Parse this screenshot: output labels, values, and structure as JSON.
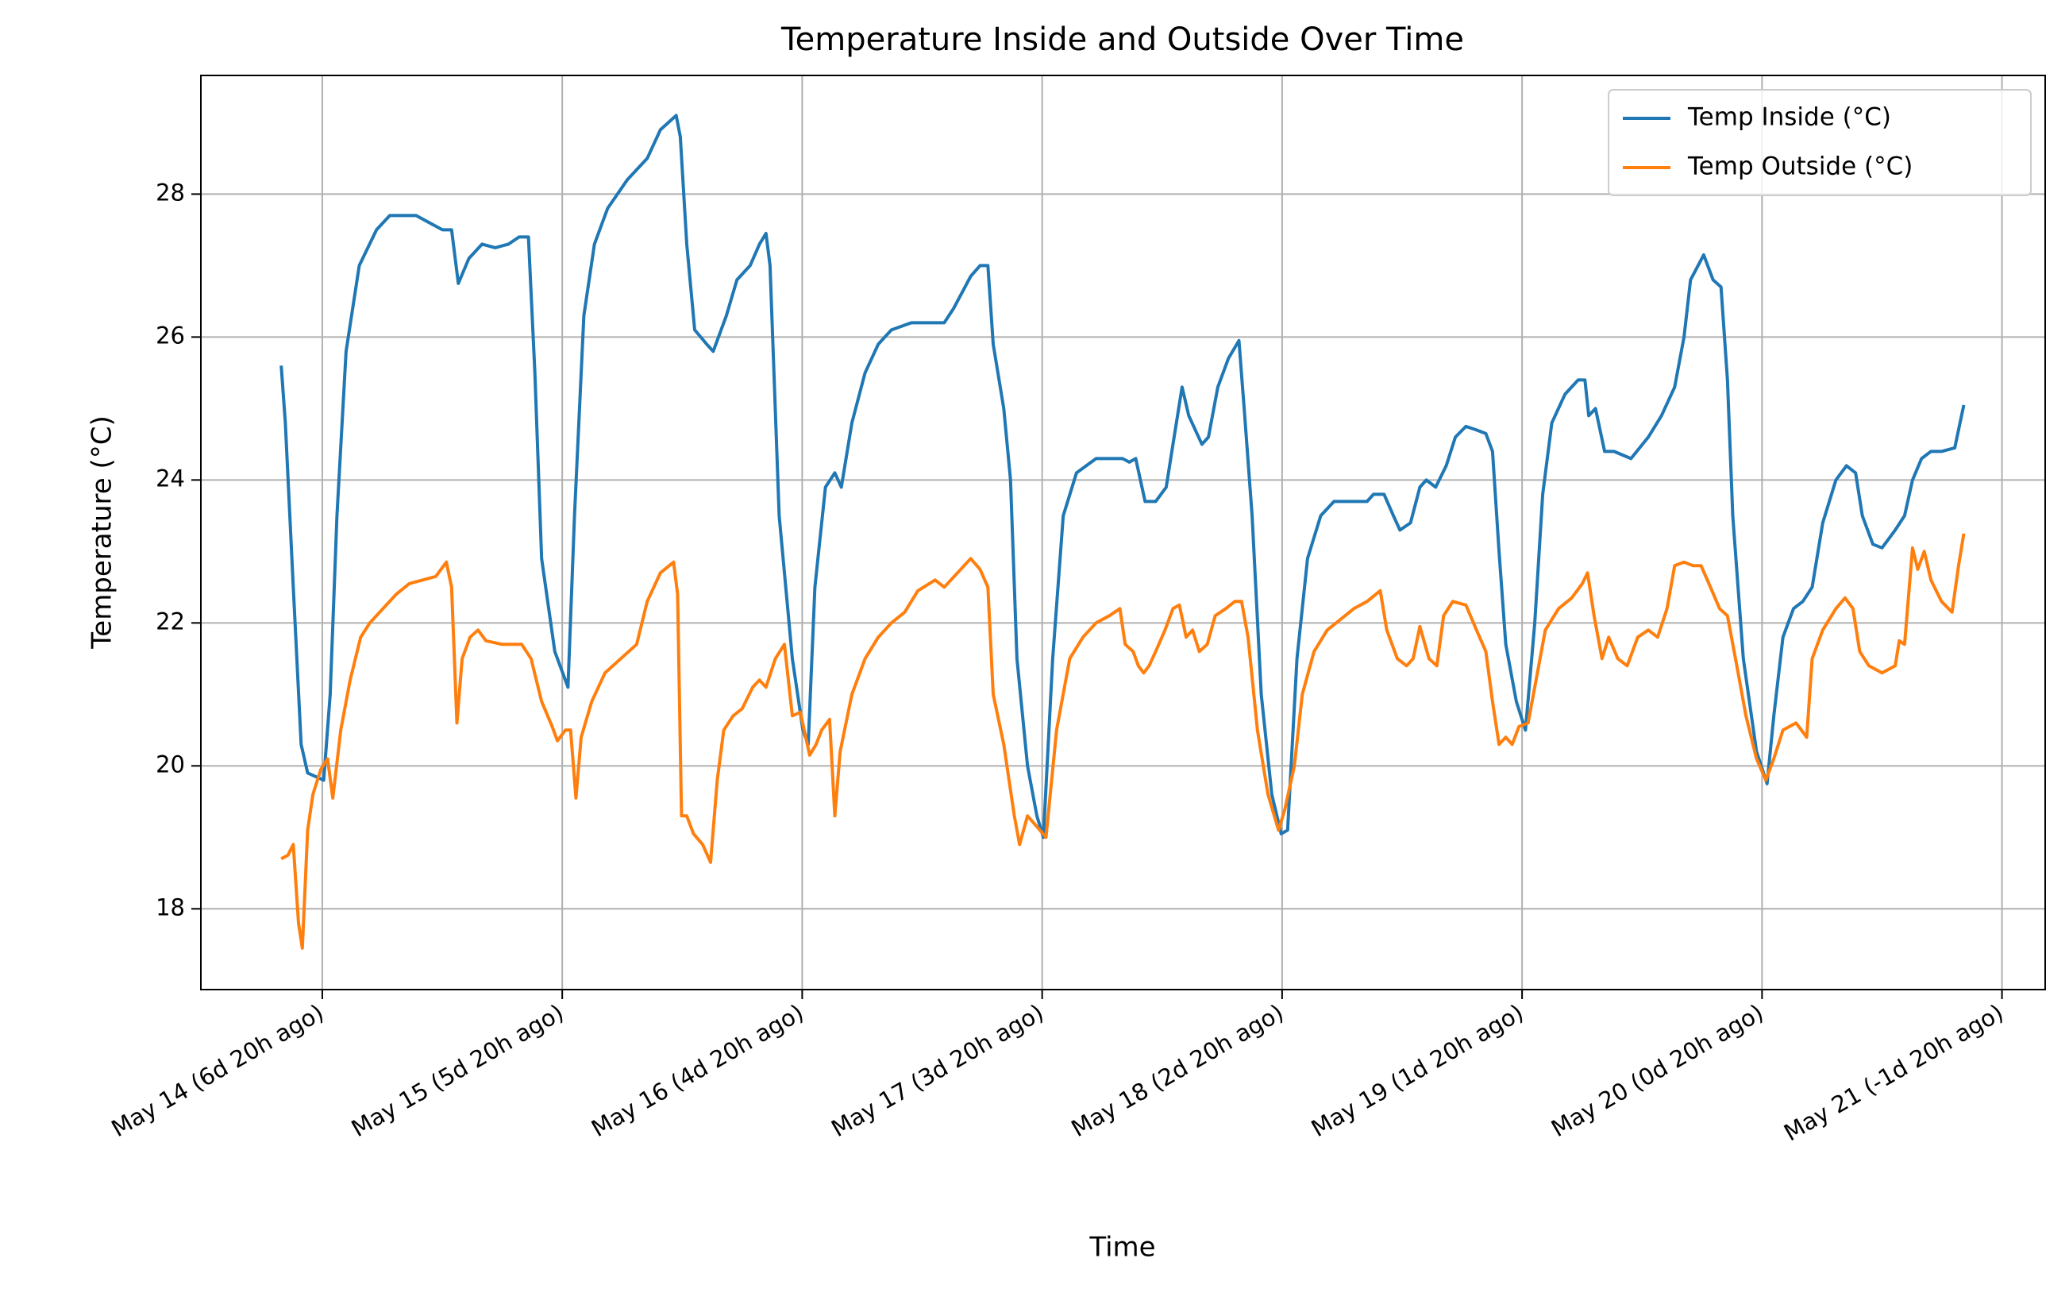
{
  "chart_data": {
    "type": "line",
    "title": "Temperature Inside and Outside Over Time",
    "x_label": "Time",
    "y_label": "Temperature (°C)",
    "xlim": [
      -0.506,
      7.18
    ],
    "ylim": [
      16.87,
      29.66
    ],
    "xticks": [
      {
        "value": 0,
        "label": "May 14 (6d 20h ago)"
      },
      {
        "value": 1,
        "label": "May 15 (5d 20h ago)"
      },
      {
        "value": 2,
        "label": "May 16 (4d 20h ago)"
      },
      {
        "value": 3,
        "label": "May 17 (3d 20h ago)"
      },
      {
        "value": 4,
        "label": "May 18 (2d 20h ago)"
      },
      {
        "value": 5,
        "label": "May 19 (1d 20h ago)"
      },
      {
        "value": 6,
        "label": "May 20 (0d 20h ago)"
      },
      {
        "value": 7,
        "label": "May 21 (-1d 20h ago)"
      }
    ],
    "yticks": [
      18,
      20,
      22,
      24,
      26,
      28
    ],
    "grid": true,
    "legend": "upper right",
    "series": [
      {
        "name": "Temp Inside (°C)",
        "color": "#1f77b4",
        "x": [
          -0.171,
          -0.154,
          -0.121,
          -0.088,
          -0.061,
          0.006,
          0.033,
          0.061,
          0.099,
          0.154,
          0.226,
          0.281,
          0.391,
          0.446,
          0.501,
          0.539,
          0.567,
          0.611,
          0.666,
          0.721,
          0.776,
          0.82,
          0.859,
          0.886,
          0.914,
          0.969,
          1.024,
          1.051,
          1.09,
          1.134,
          1.189,
          1.271,
          1.354,
          1.409,
          1.475,
          1.492,
          1.519,
          1.552,
          1.602,
          1.629,
          1.684,
          1.728,
          1.783,
          1.822,
          1.849,
          1.866,
          1.904,
          1.959,
          2.003,
          2.025,
          2.053,
          2.097,
          2.136,
          2.163,
          2.207,
          2.262,
          2.317,
          2.372,
          2.455,
          2.592,
          2.631,
          2.702,
          2.741,
          2.774,
          2.796,
          2.84,
          2.868,
          2.895,
          2.939,
          2.978,
          3.005,
          3.044,
          3.088,
          3.143,
          3.225,
          3.335,
          3.363,
          3.39,
          3.429,
          3.473,
          3.517,
          3.545,
          3.583,
          3.611,
          3.666,
          3.693,
          3.732,
          3.776,
          3.82,
          3.842,
          3.875,
          3.913,
          3.957,
          3.996,
          4.023,
          4.062,
          4.106,
          4.161,
          4.216,
          4.271,
          4.354,
          4.381,
          4.425,
          4.464,
          4.491,
          4.535,
          4.574,
          4.601,
          4.64,
          4.684,
          4.722,
          4.766,
          4.81,
          4.849,
          4.877,
          4.904,
          4.932,
          4.976,
          5.014,
          5.053,
          5.086,
          5.124,
          5.179,
          5.234,
          5.262,
          5.278,
          5.306,
          5.344,
          5.383,
          5.454,
          5.526,
          5.581,
          5.636,
          5.675,
          5.702,
          5.757,
          5.796,
          5.829,
          5.856,
          5.878,
          5.922,
          5.977,
          6.021,
          6.049,
          6.087,
          6.131,
          6.17,
          6.209,
          6.253,
          6.308,
          6.352,
          6.39,
          6.418,
          6.462,
          6.5,
          6.555,
          6.594,
          6.627,
          6.665,
          6.704,
          6.748,
          6.803,
          6.841
        ],
        "values": [
          25.6,
          24.8,
          22.5,
          20.3,
          19.9,
          19.8,
          21.0,
          23.5,
          25.8,
          27.0,
          27.5,
          27.7,
          27.7,
          27.6,
          27.5,
          27.5,
          26.75,
          27.1,
          27.3,
          27.25,
          27.3,
          27.4,
          27.4,
          25.5,
          22.9,
          21.6,
          21.1,
          23.5,
          26.3,
          27.3,
          27.8,
          28.2,
          28.5,
          28.9,
          29.1,
          28.8,
          27.3,
          26.1,
          25.9,
          25.8,
          26.3,
          26.8,
          27.0,
          27.3,
          27.45,
          27.0,
          23.5,
          21.5,
          20.5,
          20.3,
          22.5,
          23.9,
          24.1,
          23.9,
          24.8,
          25.5,
          25.9,
          26.1,
          26.2,
          26.2,
          26.4,
          26.85,
          27.0,
          27.0,
          25.9,
          25.0,
          24.0,
          21.5,
          20.0,
          19.3,
          19.0,
          21.5,
          23.5,
          24.1,
          24.3,
          24.3,
          24.25,
          24.3,
          23.7,
          23.7,
          23.9,
          24.5,
          25.3,
          24.9,
          24.5,
          24.6,
          25.3,
          25.7,
          25.95,
          25.0,
          23.5,
          21.0,
          19.6,
          19.05,
          19.1,
          21.5,
          22.9,
          23.5,
          23.7,
          23.7,
          23.7,
          23.8,
          23.8,
          23.5,
          23.3,
          23.4,
          23.9,
          24.0,
          23.9,
          24.2,
          24.6,
          24.75,
          24.7,
          24.65,
          24.4,
          23.0,
          21.7,
          20.9,
          20.5,
          22.0,
          23.8,
          24.8,
          25.2,
          25.4,
          25.4,
          24.9,
          25.0,
          24.4,
          24.4,
          24.3,
          24.6,
          24.9,
          25.3,
          26.0,
          26.8,
          27.15,
          26.8,
          26.7,
          25.4,
          23.5,
          21.5,
          20.2,
          19.75,
          20.7,
          21.8,
          22.2,
          22.3,
          22.5,
          23.4,
          24.0,
          24.2,
          24.1,
          23.5,
          23.1,
          23.05,
          23.3,
          23.5,
          24.0,
          24.3,
          24.4,
          24.4,
          24.45,
          25.05
        ]
      },
      {
        "name": "Temp Outside (°C)",
        "color": "#ff7f0e",
        "x": [
          -0.171,
          -0.143,
          -0.121,
          -0.099,
          -0.083,
          -0.061,
          -0.039,
          -0.006,
          0.022,
          0.044,
          0.077,
          0.116,
          0.16,
          0.198,
          0.253,
          0.308,
          0.363,
          0.418,
          0.473,
          0.517,
          0.539,
          0.561,
          0.583,
          0.616,
          0.649,
          0.682,
          0.749,
          0.831,
          0.87,
          0.914,
          0.958,
          0.98,
          1.013,
          1.035,
          1.057,
          1.079,
          1.123,
          1.178,
          1.244,
          1.31,
          1.354,
          1.409,
          1.464,
          1.481,
          1.497,
          1.519,
          1.547,
          1.585,
          1.618,
          1.646,
          1.673,
          1.712,
          1.75,
          1.794,
          1.822,
          1.849,
          1.888,
          1.926,
          1.959,
          1.992,
          2.031,
          2.058,
          2.081,
          2.114,
          2.136,
          2.158,
          2.207,
          2.262,
          2.317,
          2.372,
          2.427,
          2.482,
          2.554,
          2.592,
          2.647,
          2.702,
          2.741,
          2.774,
          2.796,
          2.84,
          2.884,
          2.906,
          2.939,
          2.978,
          3.016,
          3.06,
          3.115,
          3.17,
          3.225,
          3.28,
          3.324,
          3.346,
          3.379,
          3.401,
          3.423,
          3.446,
          3.473,
          3.512,
          3.545,
          3.572,
          3.6,
          3.627,
          3.655,
          3.688,
          3.721,
          3.765,
          3.803,
          3.831,
          3.858,
          3.897,
          3.941,
          3.985,
          4.012,
          4.051,
          4.084,
          4.133,
          4.188,
          4.244,
          4.299,
          4.354,
          4.409,
          4.436,
          4.48,
          4.519,
          4.546,
          4.574,
          4.612,
          4.645,
          4.673,
          4.711,
          4.766,
          4.81,
          4.849,
          4.877,
          4.904,
          4.932,
          4.959,
          4.987,
          5.025,
          5.053,
          5.097,
          5.152,
          5.207,
          5.251,
          5.273,
          5.3,
          5.333,
          5.361,
          5.399,
          5.438,
          5.482,
          5.526,
          5.565,
          5.604,
          5.636,
          5.675,
          5.713,
          5.746,
          5.785,
          5.823,
          5.856,
          5.895,
          5.933,
          5.977,
          6.016,
          6.049,
          6.087,
          6.142,
          6.186,
          6.209,
          6.253,
          6.308,
          6.346,
          6.379,
          6.407,
          6.445,
          6.5,
          6.555,
          6.572,
          6.594,
          6.627,
          6.649,
          6.676,
          6.704,
          6.748,
          6.792,
          6.819,
          6.841
        ],
        "values": [
          18.7,
          18.75,
          18.9,
          17.8,
          17.45,
          19.1,
          19.6,
          19.95,
          20.1,
          19.55,
          20.5,
          21.2,
          21.8,
          22.0,
          22.2,
          22.4,
          22.55,
          22.6,
          22.65,
          22.85,
          22.5,
          20.6,
          21.5,
          21.8,
          21.9,
          21.75,
          21.7,
          21.7,
          21.5,
          20.9,
          20.55,
          20.35,
          20.5,
          20.5,
          19.55,
          20.4,
          20.9,
          21.3,
          21.5,
          21.7,
          22.3,
          22.7,
          22.85,
          22.4,
          19.3,
          19.3,
          19.05,
          18.9,
          18.65,
          19.8,
          20.5,
          20.7,
          20.8,
          21.1,
          21.2,
          21.1,
          21.5,
          21.7,
          20.7,
          20.75,
          20.15,
          20.3,
          20.5,
          20.65,
          19.3,
          20.2,
          21.0,
          21.5,
          21.8,
          22.0,
          22.15,
          22.45,
          22.6,
          22.5,
          22.7,
          22.9,
          22.75,
          22.5,
          21.0,
          20.3,
          19.3,
          18.9,
          19.3,
          19.15,
          19.0,
          20.5,
          21.5,
          21.8,
          22.0,
          22.1,
          22.2,
          21.7,
          21.6,
          21.4,
          21.3,
          21.4,
          21.6,
          21.9,
          22.2,
          22.25,
          21.8,
          21.9,
          21.6,
          21.7,
          22.1,
          22.2,
          22.3,
          22.3,
          21.8,
          20.5,
          19.6,
          19.1,
          19.4,
          20.0,
          21.0,
          21.6,
          21.9,
          22.05,
          22.2,
          22.3,
          22.45,
          21.9,
          21.5,
          21.4,
          21.5,
          21.95,
          21.5,
          21.4,
          22.1,
          22.3,
          22.25,
          21.9,
          21.6,
          20.9,
          20.3,
          20.4,
          20.3,
          20.55,
          20.6,
          21.1,
          21.9,
          22.2,
          22.35,
          22.55,
          22.7,
          22.1,
          21.5,
          21.8,
          21.5,
          21.4,
          21.8,
          21.9,
          21.8,
          22.2,
          22.8,
          22.85,
          22.8,
          22.8,
          22.5,
          22.2,
          22.1,
          21.4,
          20.7,
          20.1,
          19.8,
          20.1,
          20.5,
          20.6,
          20.4,
          21.5,
          21.9,
          22.2,
          22.35,
          22.2,
          21.6,
          21.4,
          21.3,
          21.4,
          21.75,
          21.7,
          23.05,
          22.75,
          23.0,
          22.6,
          22.3,
          22.15,
          22.8,
          23.25
        ]
      }
    ]
  }
}
